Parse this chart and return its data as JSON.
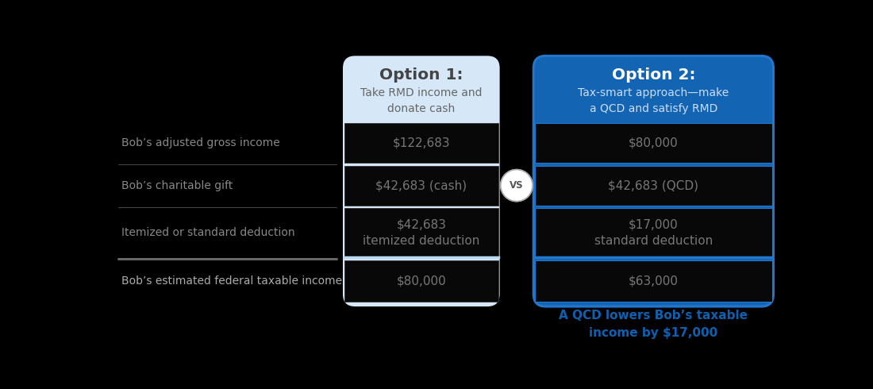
{
  "background_color": "#000000",
  "left_labels": [
    "Bob’s adjusted gross income",
    "Bob’s charitable gift",
    "Itemized or standard deduction",
    "Bob’s estimated federal taxable income"
  ],
  "left_label_colors": [
    "#888888",
    "#888888",
    "#888888",
    "#aaaaaa"
  ],
  "left_label_bold": [
    false,
    false,
    false,
    false
  ],
  "option1_header": "Option 1:",
  "option1_subheader": "Take RMD income and\ndonate cash",
  "option1_header_color": "#444444",
  "option1_subheader_color": "#666666",
  "option1_bg": "#d6e8f7",
  "option1_row_bg": "#080808",
  "option1_values": [
    "$122,683",
    "$42,683 (cash)",
    "$42,683\nitemized deduction",
    "$80,000"
  ],
  "option1_value_color": "#777777",
  "option1_border_color": "#cccccc",
  "option2_header": "Option 2:",
  "option2_subheader": "Tax-smart approach—make\na QCD and satisfy RMD",
  "option2_header_color": "#ffffff",
  "option2_subheader_color": "#ccddf5",
  "option2_bg": "#1464b4",
  "option2_row_bg": "#080808",
  "option2_values": [
    "$80,000",
    "$42,683 (QCD)",
    "$17,000\nstandard deduction",
    "$63,000"
  ],
  "option2_value_color": "#777777",
  "option2_border_color": "#2277cc",
  "footer_text": "A QCD lowers Bob’s taxable\nincome by $17,000",
  "footer_color": "#1060b0",
  "vs_text": "VS",
  "vs_circle_bg": "#ffffff",
  "vs_circle_border": "#aaaaaa",
  "vs_text_color": "#555555",
  "left_divider_thin_color": "#444444",
  "left_thick_divider_color": "#666666",
  "opt1_last_row_separator_color": "#b8d8f0",
  "opt2_last_row_separator_color": "#2277cc"
}
